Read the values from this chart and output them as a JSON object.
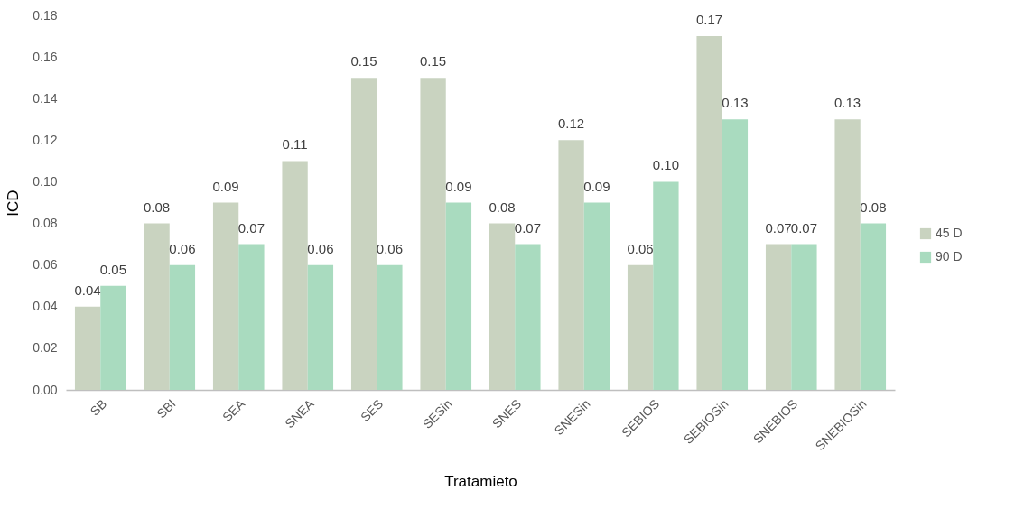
{
  "chart_data": {
    "type": "bar",
    "xlabel": "Tratamieto",
    "ylabel": "ICD",
    "categories": [
      "SB",
      "SBI",
      "SEA",
      "SNEA",
      "SES",
      "SESin",
      "SNES",
      "SNESin",
      "SEBIOS",
      "SEBIOSin",
      "SNEBIOS",
      "SNEBIOSin"
    ],
    "series": [
      {
        "name": "45 D",
        "color": "#c9d3c0",
        "values": [
          0.04,
          0.08,
          0.09,
          0.11,
          0.15,
          0.15,
          0.08,
          0.12,
          0.06,
          0.17,
          0.07,
          0.13
        ],
        "value_labels": [
          "0.04",
          "0.08",
          "0.09",
          "0.11",
          "0.15",
          "0.15",
          "0.08",
          "0.12",
          "0.06",
          "0.17",
          "0.07",
          "0.13"
        ]
      },
      {
        "name": "90 D",
        "color": "#a9dbbf",
        "values": [
          0.05,
          0.06,
          0.07,
          0.06,
          0.06,
          0.09,
          0.07,
          0.09,
          0.1,
          0.13,
          0.07,
          0.08
        ],
        "value_labels": [
          "0.05",
          "0.06",
          "0.07",
          "0.06",
          "0.06",
          "0.09",
          "0.07",
          "0.09",
          "0.10",
          "0.13",
          "0.07",
          "0.08"
        ]
      }
    ],
    "ylim": [
      0,
      0.18
    ],
    "yticks": [
      {
        "value": 0,
        "label": "0.00"
      },
      {
        "value": 0.02,
        "label": "0.02"
      },
      {
        "value": 0.04,
        "label": "0.04"
      },
      {
        "value": 0.06,
        "label": "0.06"
      },
      {
        "value": 0.08,
        "label": "0.08"
      },
      {
        "value": 0.1,
        "label": "0.10"
      },
      {
        "value": 0.12,
        "label": "0.12"
      },
      {
        "value": 0.14,
        "label": "0.14"
      },
      {
        "value": 0.16,
        "label": "0.16"
      },
      {
        "value": 0.18,
        "label": "0.18"
      }
    ],
    "grid": false,
    "legend": "right"
  }
}
